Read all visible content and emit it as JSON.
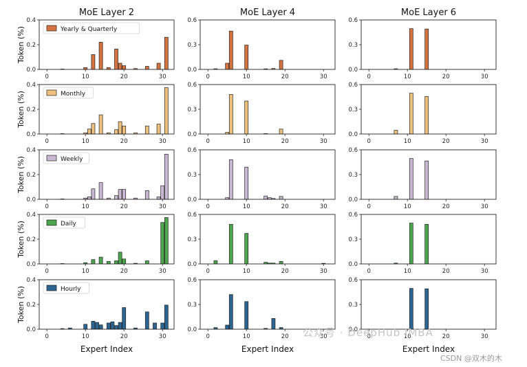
{
  "chart_data": {
    "type": "bar",
    "column_titles": [
      "MoE Layer 2",
      "MoE Layer 4",
      "MoE Layer 6"
    ],
    "xlabel": "Expert Index",
    "ylabel": "Token (%)",
    "xlim": [
      -2,
      33
    ],
    "xticks": [
      0,
      10,
      20,
      30
    ],
    "rows": [
      {
        "name": "Yearly & Quarterly",
        "color": "#d4733f",
        "panels": [
          {
            "ylim": [
              0,
              0.4
            ],
            "yticks": [
              0.0,
              0.2,
              0.4
            ],
            "x": [
              4,
              10,
              12,
              14,
              16,
              18,
              19,
              20,
              23,
              26,
              29,
              31
            ],
            "values": [
              0.003,
              0.015,
              0.12,
              0.22,
              0.015,
              0.165,
              0.05,
              0.03,
              0.007,
              0.025,
              0.05,
              0.26
            ]
          },
          {
            "ylim": [
              0,
              0.6
            ],
            "yticks": [
              0.0,
              0.3,
              0.6
            ],
            "x": [
              2,
              5,
              6,
              10,
              15,
              17,
              19
            ],
            "values": [
              0.008,
              0.075,
              0.465,
              0.295,
              0.007,
              0.012,
              0.11
            ]
          },
          {
            "ylim": [
              0,
              0.6
            ],
            "yticks": [
              0.0,
              0.3,
              0.6
            ],
            "x": [
              7,
              11,
              15
            ],
            "values": [
              0.008,
              0.495,
              0.49
            ]
          }
        ]
      },
      {
        "name": "Monthly",
        "color": "#eec07e",
        "panels": [
          {
            "ylim": [
              0,
              0.4
            ],
            "yticks": [
              0.0,
              0.2,
              0.4
            ],
            "x": [
              4,
              10,
              11,
              12,
              14,
              16,
              18,
              19,
              20,
              23,
              26,
              29,
              31
            ],
            "values": [
              0.003,
              0.01,
              0.04,
              0.085,
              0.155,
              0.01,
              0.035,
              0.1,
              0.065,
              0.01,
              0.065,
              0.08,
              0.375
            ]
          },
          {
            "ylim": [
              0,
              0.6
            ],
            "yticks": [
              0.0,
              0.3,
              0.6
            ],
            "x": [
              5,
              6,
              10,
              15,
              19
            ],
            "values": [
              0.02,
              0.48,
              0.4,
              0.005,
              0.06
            ]
          },
          {
            "ylim": [
              0,
              0.6
            ],
            "yticks": [
              0.0,
              0.3,
              0.6
            ],
            "x": [
              7,
              11,
              15
            ],
            "values": [
              0.045,
              0.495,
              0.455
            ]
          }
        ]
      },
      {
        "name": "Weekly",
        "color": "#c9b8d3",
        "panels": [
          {
            "ylim": [
              0,
              0.4
            ],
            "yticks": [
              0.0,
              0.2,
              0.4
            ],
            "x": [
              4,
              10,
              11,
              12,
              14,
              16,
              18,
              19,
              20,
              23,
              26,
              29,
              30,
              31
            ],
            "values": [
              0.003,
              0.01,
              0.02,
              0.085,
              0.135,
              0.01,
              0.03,
              0.08,
              0.08,
              0.01,
              0.07,
              0.02,
              0.11,
              0.365
            ]
          },
          {
            "ylim": [
              0,
              0.6
            ],
            "yticks": [
              0.0,
              0.3,
              0.6
            ],
            "x": [
              5,
              6,
              10,
              15,
              16,
              17,
              19
            ],
            "values": [
              0.02,
              0.48,
              0.39,
              0.04,
              0.02,
              0.01,
              0.035
            ]
          },
          {
            "ylim": [
              0,
              0.6
            ],
            "yticks": [
              0.0,
              0.3,
              0.6
            ],
            "x": [
              7,
              11,
              15
            ],
            "values": [
              0.035,
              0.495,
              0.465
            ]
          }
        ]
      },
      {
        "name": "Daily",
        "color": "#4da64f",
        "panels": [
          {
            "ylim": [
              0,
              0.4
            ],
            "yticks": [
              0.0,
              0.2,
              0.4
            ],
            "x": [
              4,
              10,
              12,
              14,
              16,
              18,
              19,
              20,
              23,
              26,
              30,
              31
            ],
            "values": [
              0.003,
              0.01,
              0.035,
              0.055,
              0.02,
              0.025,
              0.095,
              0.04,
              0.005,
              0.025,
              0.335,
              0.375
            ]
          },
          {
            "ylim": [
              0,
              0.6
            ],
            "yticks": [
              0.0,
              0.3,
              0.6
            ],
            "x": [
              2,
              6,
              10,
              15,
              16,
              17,
              19,
              30
            ],
            "values": [
              0.04,
              0.48,
              0.37,
              0.02,
              0.01,
              0.01,
              0.03,
              0.007
            ]
          },
          {
            "ylim": [
              0,
              0.6
            ],
            "yticks": [
              0.0,
              0.3,
              0.6
            ],
            "x": [
              7,
              11,
              15
            ],
            "values": [
              0.01,
              0.495,
              0.48
            ]
          }
        ]
      },
      {
        "name": "Hourly",
        "color": "#2d6591",
        "panels": [
          {
            "ylim": [
              0,
              0.4
            ],
            "yticks": [
              0.0,
              0.2,
              0.4
            ],
            "x": [
              4,
              6,
              10,
              12,
              13,
              14,
              16,
              17,
              18,
              19,
              20,
              23,
              26,
              28,
              30,
              31
            ],
            "values": [
              0.005,
              0.01,
              0.04,
              0.065,
              0.055,
              0.035,
              0.05,
              0.06,
              0.03,
              0.055,
              0.175,
              0.01,
              0.14,
              0.05,
              0.05,
              0.195
            ]
          },
          {
            "ylim": [
              0,
              0.6
            ],
            "yticks": [
              0.0,
              0.3,
              0.6
            ],
            "x": [
              2,
              5,
              6,
              10,
              15,
              17,
              19
            ],
            "values": [
              0.02,
              0.05,
              0.42,
              0.335,
              0.01,
              0.13,
              0.02
            ]
          },
          {
            "ylim": [
              0,
              0.6
            ],
            "yticks": [
              0.0,
              0.3,
              0.6
            ],
            "x": [
              11,
              15
            ],
            "values": [
              0.495,
              0.49
            ]
          }
        ]
      }
    ]
  },
  "watermark": {
    "main": "公众号 · DeepHub IMBA",
    "csdn": "CSDN @双木的木"
  }
}
